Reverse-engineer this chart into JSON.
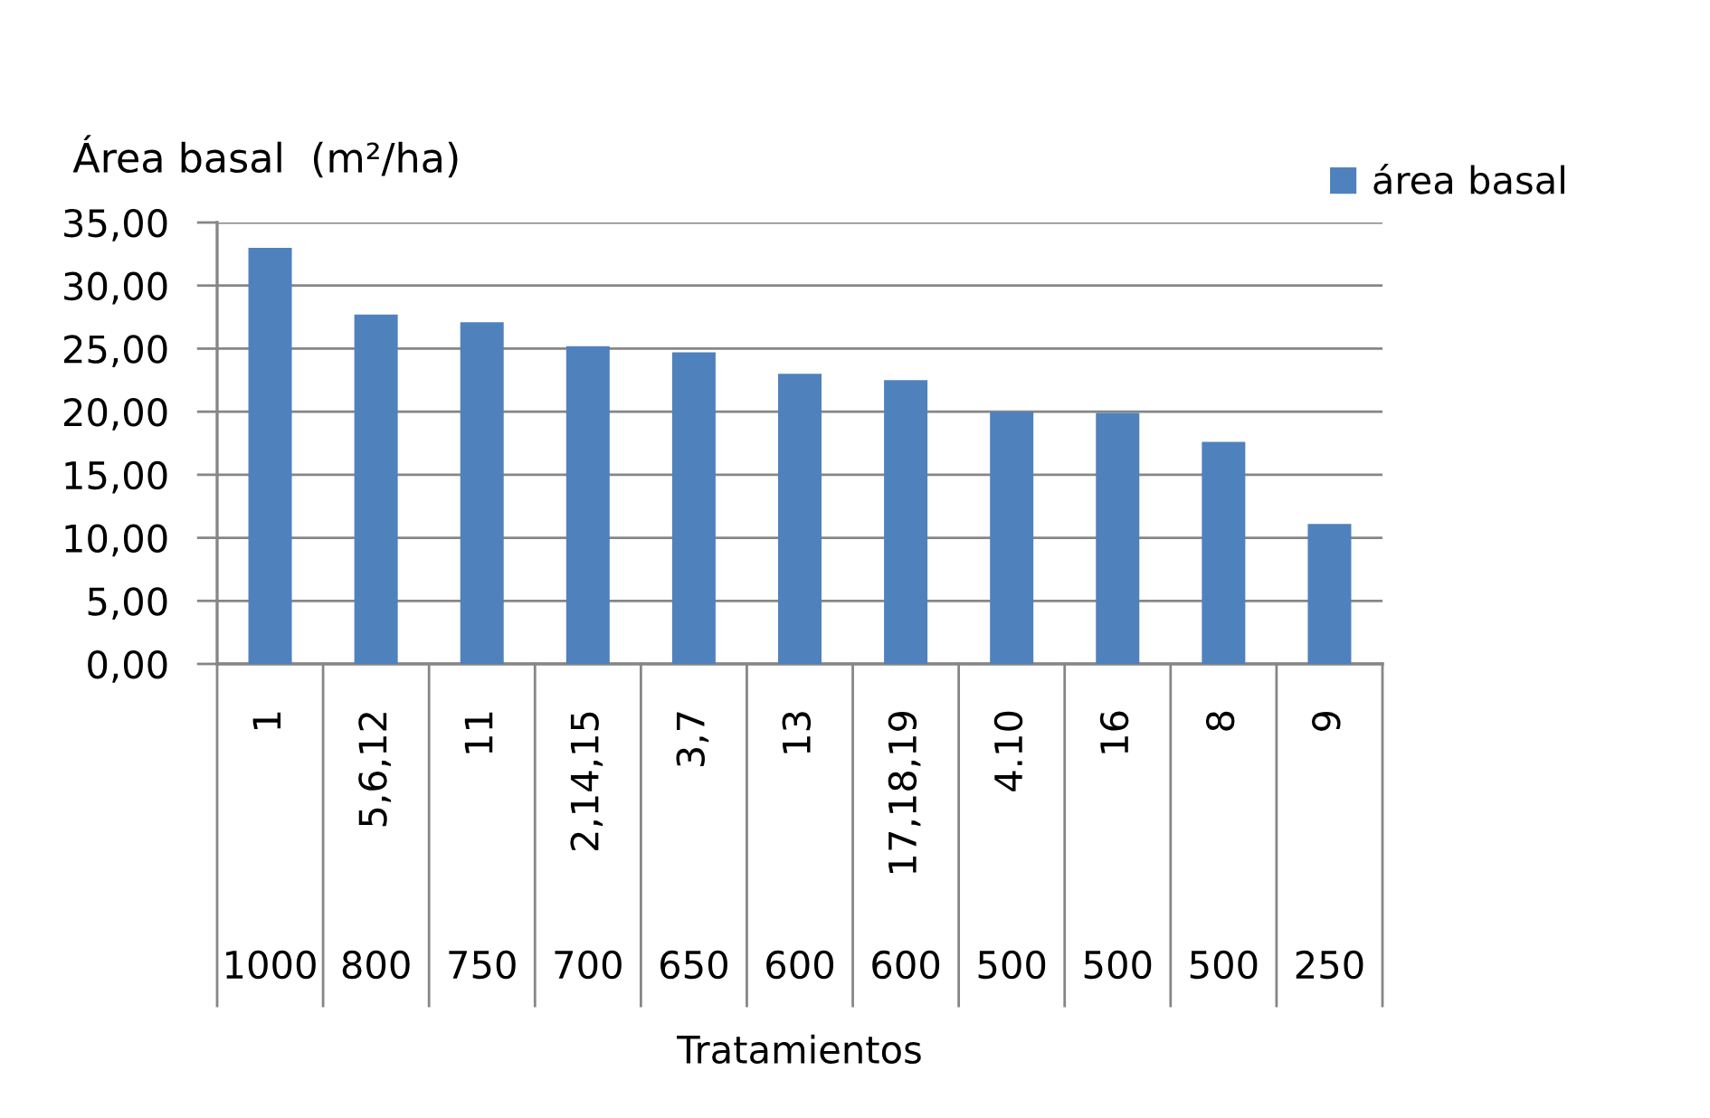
{
  "chart_data": {
    "type": "bar",
    "ylabel": "Área basal  (m²/ha)",
    "xlabel": "Tratamientos",
    "categories": [
      "1",
      "5,6,12",
      "11",
      "2,14,15",
      "3,7",
      "13",
      "17,18,19",
      "4.10",
      "16",
      "8",
      "9"
    ],
    "series": [
      {
        "name": "área basal",
        "color": "#4f81bd",
        "values": [
          33.0,
          27.7,
          27.1,
          25.2,
          24.7,
          23.0,
          22.5,
          20.0,
          19.9,
          17.6,
          11.1
        ]
      }
    ],
    "ylim": [
      0,
      35
    ],
    "yticks": [
      {
        "value": 0,
        "label": "0,00"
      },
      {
        "value": 5,
        "label": "5,00"
      },
      {
        "value": 10,
        "label": "10,00"
      },
      {
        "value": 15,
        "label": "15,00"
      },
      {
        "value": 20,
        "label": "20,00"
      },
      {
        "value": 25,
        "label": "25,00"
      },
      {
        "value": 30,
        "label": "30,00"
      },
      {
        "value": 35,
        "label": "35,00"
      }
    ],
    "grid": "y",
    "legend": "top right",
    "annotations": [
      "1000",
      "800",
      "750",
      "700",
      "650",
      "600",
      "600",
      "500",
      "500",
      "500",
      "250"
    ]
  }
}
